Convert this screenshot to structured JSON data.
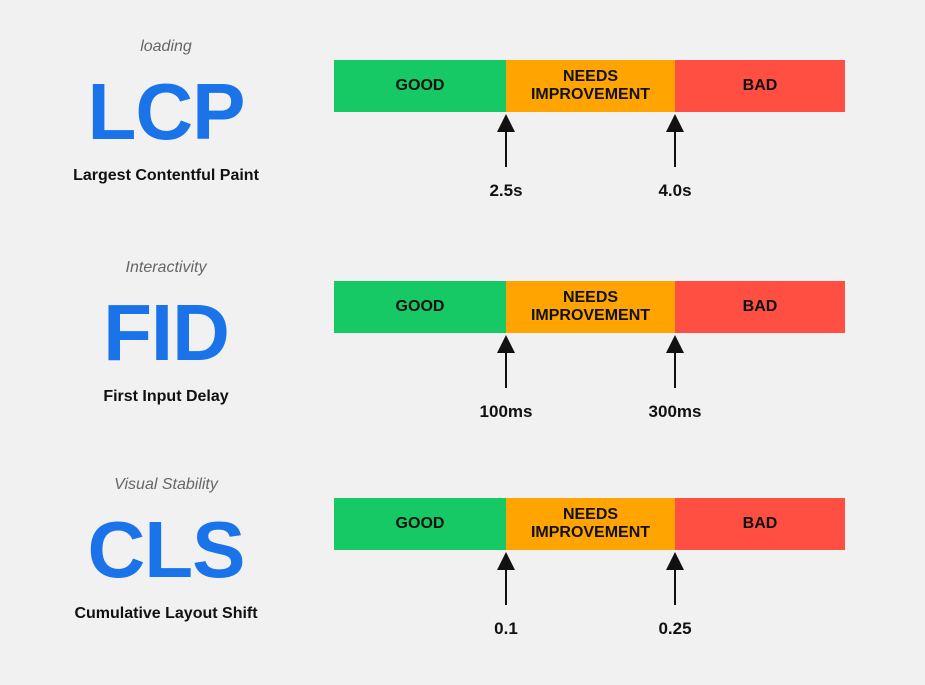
{
  "colors": {
    "good": "#17c964",
    "needs_improvement": "#ffa400",
    "bad": "#ff4e42",
    "acronym": "#1a73e8",
    "background": "#f1f1f1"
  },
  "segments": {
    "good": "GOOD",
    "needs_line1": "NEEDS",
    "needs_line2": "IMPROVEMENT",
    "bad": "BAD"
  },
  "metrics": [
    {
      "category": "loading",
      "acronym": "LCP",
      "full_name": "Largest Contentful Paint",
      "thresholds": [
        "2.5s",
        "4.0s"
      ]
    },
    {
      "category": "Interactivity",
      "acronym": "FID",
      "full_name": "First Input Delay",
      "thresholds": [
        "100ms",
        "300ms"
      ]
    },
    {
      "category": "Visual Stability",
      "acronym": "CLS",
      "full_name": "Cumulative Layout Shift",
      "thresholds": [
        "0.1",
        "0.25"
      ]
    }
  ]
}
